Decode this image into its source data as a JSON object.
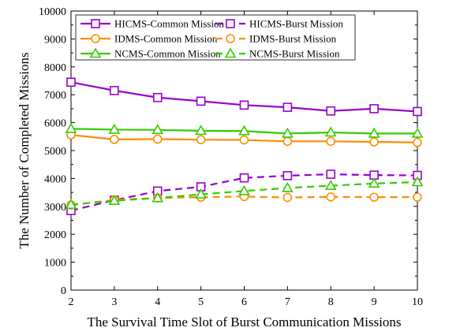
{
  "chart_data": {
    "type": "line",
    "title": "",
    "xlabel": "The Survival Time Slot of Burst Communication Missions",
    "ylabel": "The Number of Completed Missions",
    "x": [
      2,
      3,
      4,
      5,
      6,
      7,
      8,
      9,
      10
    ],
    "xlim": [
      2,
      10
    ],
    "ylim": [
      0,
      10000
    ],
    "xticks": [
      "2",
      "3",
      "4",
      "5",
      "6",
      "7",
      "8",
      "9",
      "10"
    ],
    "yticks": [
      "0",
      "1000",
      "2000",
      "3000",
      "4000",
      "5000",
      "6000",
      "7000",
      "8000",
      "9000",
      "10000"
    ],
    "grid": false,
    "legend_position": "top",
    "series": [
      {
        "name": "HICMS-Common Mission",
        "color": "#9900CC",
        "marker": "square",
        "style": "solid",
        "values": [
          7450,
          7150,
          6900,
          6770,
          6630,
          6550,
          6420,
          6500,
          6400
        ]
      },
      {
        "name": "HICMS-Burst Mission",
        "color": "#9900CC",
        "marker": "square",
        "style": "dashed",
        "values": [
          2850,
          3220,
          3550,
          3700,
          4020,
          4100,
          4150,
          4120,
          4110
        ]
      },
      {
        "name": "IDMS-Common Mission",
        "color": "#FF8C00",
        "marker": "circle",
        "style": "solid",
        "values": [
          5560,
          5400,
          5410,
          5390,
          5380,
          5330,
          5330,
          5310,
          5290
        ]
      },
      {
        "name": "IDMS-Burst Mission",
        "color": "#FF8C00",
        "marker": "circle",
        "style": "dashed",
        "values": [
          3050,
          3230,
          3300,
          3330,
          3350,
          3320,
          3340,
          3330,
          3330
        ]
      },
      {
        "name": "NCMS-Common Mission",
        "color": "#33CC00",
        "marker": "triangle",
        "style": "solid",
        "values": [
          5780,
          5750,
          5740,
          5710,
          5700,
          5610,
          5650,
          5610,
          5610
        ]
      },
      {
        "name": "NCMS-Burst Mission",
        "color": "#33CC00",
        "marker": "triangle",
        "style": "dashed",
        "values": [
          3060,
          3200,
          3300,
          3430,
          3550,
          3660,
          3740,
          3820,
          3870
        ]
      }
    ]
  }
}
